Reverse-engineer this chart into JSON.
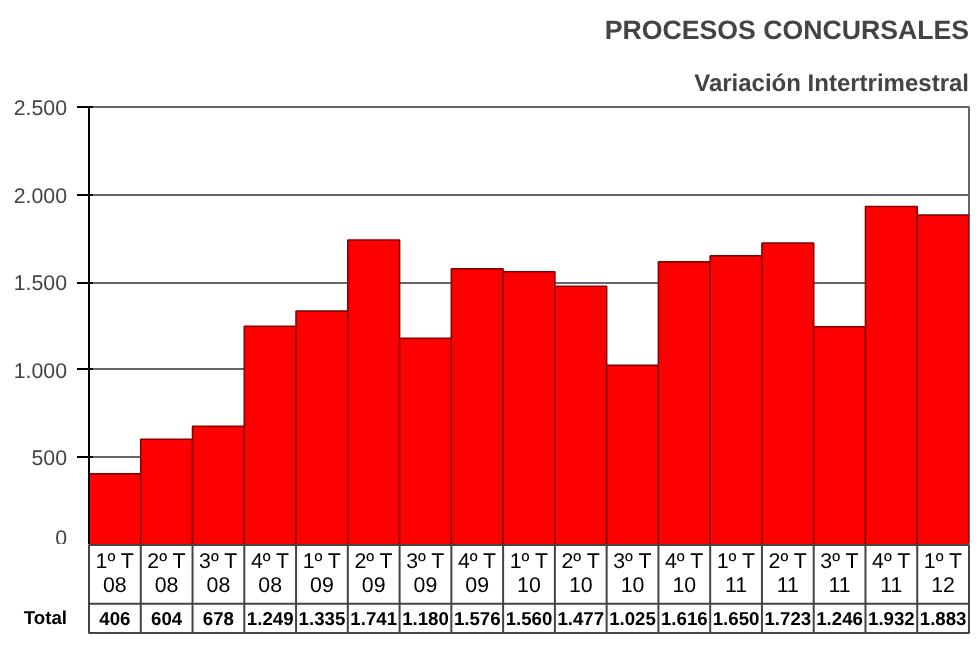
{
  "chart_data": {
    "type": "bar",
    "title": "PROCESOS CONCURSALES",
    "subtitle": "Variación Intertrimestral",
    "categories": [
      "1º T\n08",
      "2º T\n08",
      "3º T\n08",
      "4º T\n08",
      "1º T\n09",
      "2º T\n09",
      "3º T\n09",
      "4º T\n09",
      "1º T\n10",
      "2º T\n10",
      "3º T\n10",
      "4º T\n10",
      "1º T\n11",
      "2º T\n11",
      "3º T\n11",
      "4º T\n11",
      "1º T\n12"
    ],
    "values": [
      406,
      604,
      678,
      1249,
      1335,
      1741,
      1180,
      1576,
      1560,
      1477,
      1025,
      1616,
      1650,
      1723,
      1246,
      1932,
      1883
    ],
    "value_labels": [
      "406",
      "604",
      "678",
      "1.249",
      "1.335",
      "1.741",
      "1.180",
      "1.576",
      "1.560",
      "1.477",
      "1.025",
      "1.616",
      "1.650",
      "1.723",
      "1.246",
      "1.932",
      "1.883"
    ],
    "annotations": [
      "Total"
    ],
    "color": "#ff0000",
    "ylim": [
      0,
      2500
    ],
    "yticks": [
      0,
      {
        "value": 500,
        "label": "500"
      },
      {
        "value": 1000,
        "label": "1.000"
      },
      {
        "value": 1500,
        "label": "1.500"
      },
      {
        "value": 2000,
        "label": "2.000"
      },
      {
        "value": 2500,
        "label": "2.500"
      }
    ],
    "grid": "y"
  }
}
